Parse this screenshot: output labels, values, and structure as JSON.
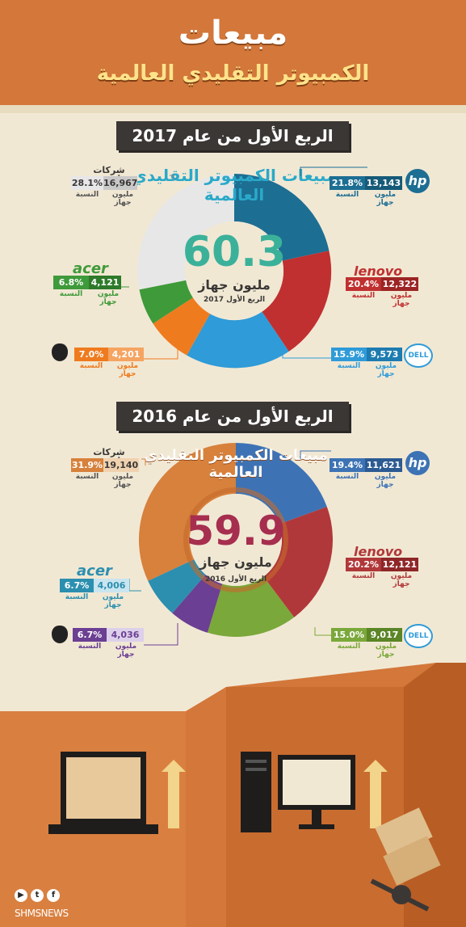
{
  "header": {
    "title": "مبيعات",
    "subtitle": "الكمبيوتر التقليدي العالمية"
  },
  "section2017": {
    "band": "الربع الأول من عام 2017",
    "ring_text": "مبيعات الكمبيوتر التقليدي العالمية",
    "center_value": "60.3",
    "center_unit": "مليون جهاز",
    "center_caption": "الربع الأول 2017",
    "vendors": {
      "others": {
        "name": "شركات أخرى",
        "units": "16,967",
        "share": "28.1%"
      },
      "hp": {
        "units": "13,143",
        "share": "21.8%"
      },
      "lenovo": {
        "units": "12,322",
        "share": "20.4%"
      },
      "dell": {
        "units": "9,573",
        "share": "15.9%"
      },
      "acer": {
        "units": "4,121",
        "share": "6.8%"
      },
      "apple": {
        "units": "4,201",
        "share": "7.0%"
      }
    }
  },
  "section2016": {
    "band": "الربع الأول من عام 2016",
    "ring_text": "مبيعات الكمبيوتر التقليدي العالمية",
    "center_value": "59.9",
    "center_unit": "مليون جهاز",
    "center_caption": "الربع الأول 2016",
    "vendors": {
      "others": {
        "name": "شركات أخرى",
        "units": "19,140",
        "share": "31.9%"
      },
      "hp": {
        "units": "11,621",
        "share": "19.4%"
      },
      "lenovo": {
        "units": "12,121",
        "share": "20.2%"
      },
      "dell": {
        "units": "9,017",
        "share": "15.0%"
      },
      "acer": {
        "units": "4,006",
        "share": "6.7%"
      },
      "apple": {
        "units": "4,036",
        "share": "6.7%"
      }
    }
  },
  "captions": {
    "units_label": "مليون جهاز",
    "share_label": "النسبة"
  },
  "logos": {
    "hp": "hp",
    "lenovo": "lenovo",
    "dell": "DELL",
    "acer": "acer"
  },
  "footer": {
    "brand": "SHMSNEWS"
  },
  "colors": {
    "hp": "#1d6e93",
    "lenovo": "#c03030",
    "dell": "#2f9bd8",
    "apple": "#ef7b1f",
    "acer": "#3f9a3a",
    "others": "#e7e7e7",
    "hp2016": "#3d73b5",
    "lenovo2016": "#b1383a",
    "dell2016": "#7aa83a",
    "apple2016": "#6b3f93",
    "acer2016": "#2c8fb0",
    "others2016": "#d7813c"
  }
}
